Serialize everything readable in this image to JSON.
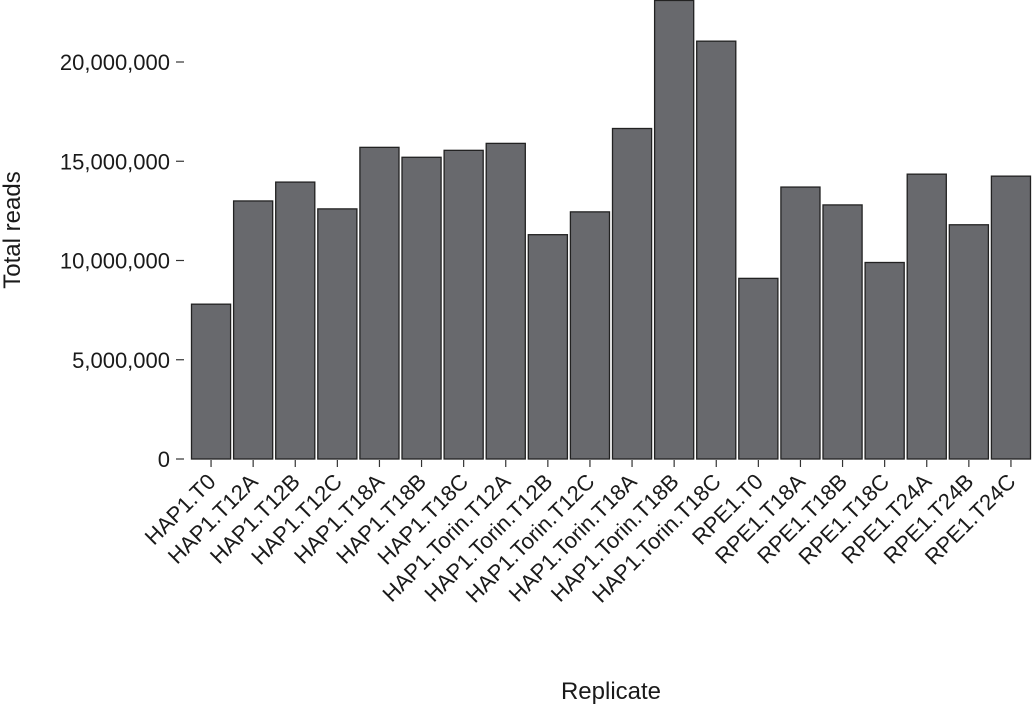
{
  "chart_data": {
    "type": "bar",
    "xlabel": "Replicate",
    "ylabel": "Total reads",
    "ylim": [
      0,
      23000000
    ],
    "yticks": [
      0,
      5000000,
      10000000,
      15000000,
      20000000
    ],
    "ytick_labels": [
      "0",
      "5,000,000",
      "10,000,000",
      "15,000,000",
      "20,000,000"
    ],
    "grid": false,
    "bar_color": "#68696d",
    "categories": [
      "HAP1.T0",
      "HAP1.T12A",
      "HAP1.T12B",
      "HAP1.T12C",
      "HAP1.T18A",
      "HAP1.T18B",
      "HAP1.T18C",
      "HAP1.Torin.T12A",
      "HAP1.Torin.T12B",
      "HAP1.Torin.T12C",
      "HAP1.Torin.T18A",
      "HAP1.Torin.T18B",
      "HAP1.Torin.T18C",
      "RPE1.T0",
      "RPE1.T18A",
      "RPE1.T18B",
      "RPE1.T18C",
      "RPE1.T24A",
      "RPE1.T24B",
      "RPE1.T24C"
    ],
    "values": [
      7800000,
      13000000,
      13950000,
      12600000,
      15700000,
      15200000,
      15550000,
      15900000,
      11300000,
      12450000,
      16650000,
      23100000,
      21050000,
      9100000,
      13700000,
      12800000,
      9900000,
      14350000,
      11800000,
      14250000
    ]
  }
}
